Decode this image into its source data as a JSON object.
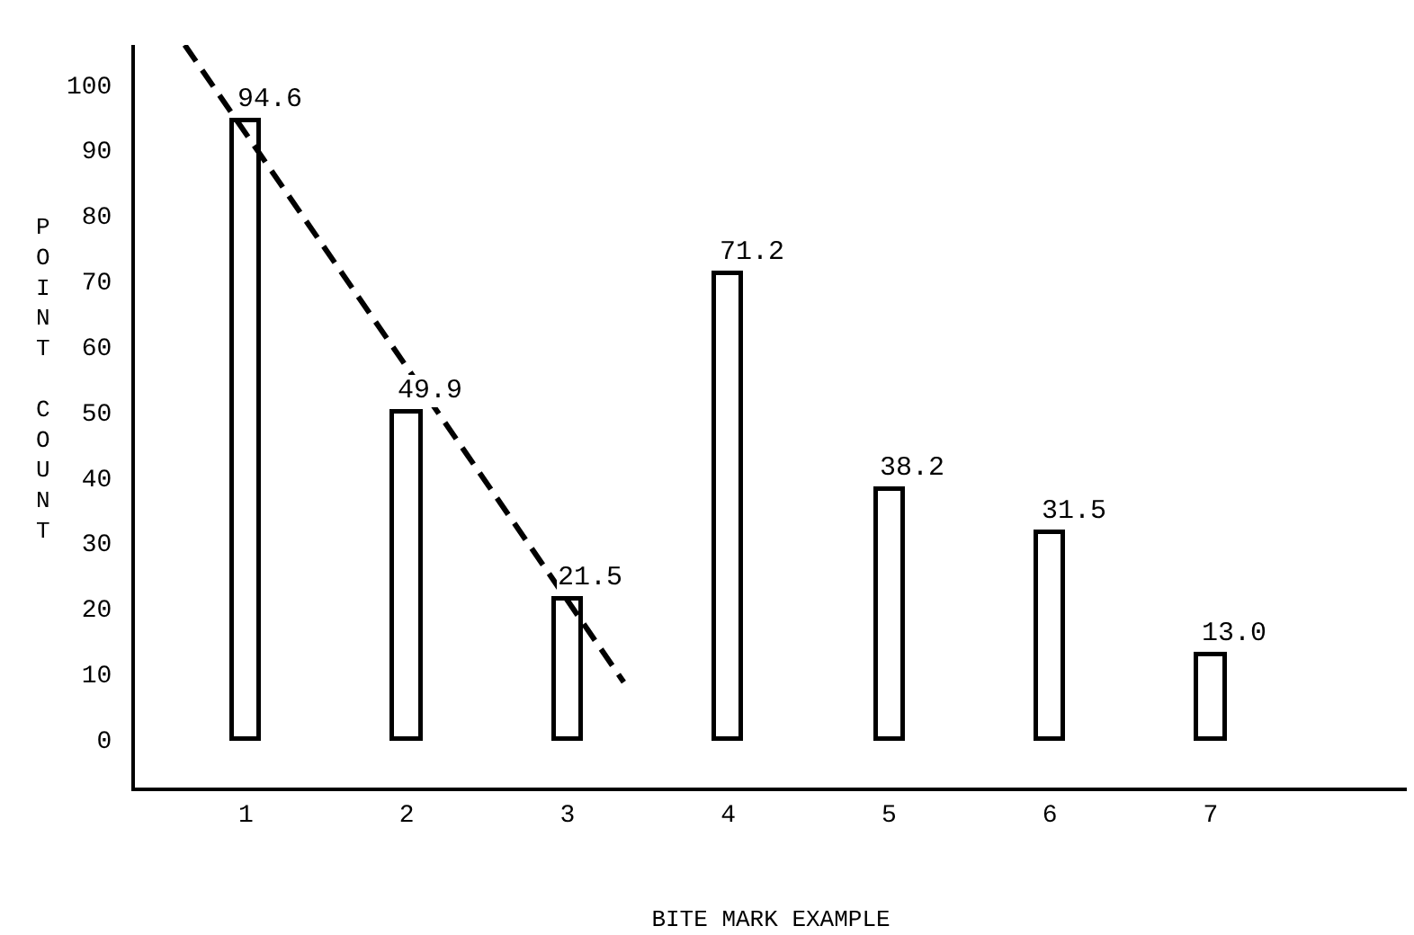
{
  "chart_data": {
    "type": "bar",
    "xlabel": "BITE MARK EXAMPLE",
    "ylabel": "POINT COUNT",
    "x": [
      1,
      2,
      3,
      4,
      5,
      6,
      7
    ],
    "series": [
      {
        "color": "#ffffff",
        "values": [
          94.6,
          49.9,
          21.5,
          71.2,
          38.2,
          31.5,
          13.0
        ],
        "value_labels": [
          "94.6",
          "49.9",
          "21.5",
          "71.2",
          "38.2",
          "31.5",
          "13.0"
        ]
      },
      {
        "type": "line",
        "x": [
          0.62,
          3.35
        ],
        "values": [
          106,
          8.7
        ],
        "color": "#000000",
        "line_style": "dashed"
      }
    ],
    "xlim": [
      0.31,
      8.22
    ],
    "xticks": [
      1,
      2,
      3,
      4,
      5,
      6,
      7
    ],
    "ylim": [
      -7.4,
      106
    ],
    "yticks": [
      0,
      10,
      20,
      30,
      40,
      50,
      60,
      70,
      80,
      90,
      100
    ],
    "marker": "none"
  }
}
